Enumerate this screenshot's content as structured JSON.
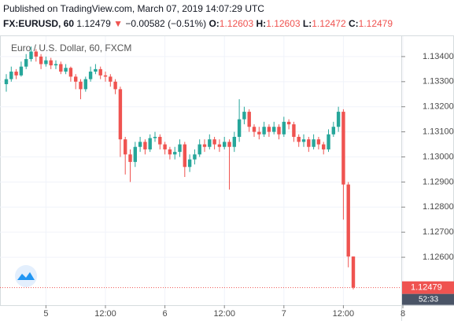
{
  "header": {
    "published": "Published on TradingView.com, March 07, 2019 14:07:29 UTC",
    "symbol": "FX:EURUSD, 60",
    "last": "1.12479",
    "direction": "▼",
    "change": "−0.00582 (−0.51%)",
    "o_label": "O:",
    "o": "1.12603",
    "h_label": "H:",
    "h": "1.12603",
    "l_label": "L:",
    "l": "1.12472",
    "c_label": "C:",
    "c": "1.12479"
  },
  "chart_data": {
    "type": "candlestick",
    "title": "Euro / U.S. Dollar, 60, FXCM",
    "up_color": "#26a69a",
    "down_color": "#ef5350",
    "grid": true,
    "countdown": "52:33",
    "open": [
      1.1329,
      1.1331,
      1.1334,
      1.13325,
      1.1336,
      1.1339,
      1.1342,
      1.134,
      1.1337,
      1.13385,
      1.13365,
      1.1337,
      1.1334,
      1.13355,
      1.1332,
      1.133,
      1.1327,
      1.1331,
      1.1334,
      1.1335,
      1.13325,
      1.1332,
      1.133,
      1.1327,
      1.1307,
      1.1301,
      1.1298,
      1.1304,
      1.1306,
      1.1303,
      1.13075,
      1.1308,
      1.1305,
      1.1303,
      1.1301,
      1.1302,
      1.1305,
      1.1296,
      1.1299,
      1.1301,
      1.1305,
      1.1304,
      1.1307,
      1.1305,
      1.1304,
      1.1306,
      1.1304,
      1.1308,
      1.1315,
      1.1318,
      1.1312,
      1.131,
      1.1309,
      1.1312,
      1.131,
      1.1312,
      1.1309,
      1.1314,
      1.1313,
      1.1308,
      1.1306,
      1.1307,
      1.1304,
      1.1307,
      1.1305,
      1.1303,
      1.1309,
      1.1312,
      1.1318,
      1.1289,
      1.12603
    ],
    "high": [
      1.1333,
      1.1336,
      1.1335,
      1.1338,
      1.1341,
      1.1344,
      1.1343,
      1.1341,
      1.134,
      1.13395,
      1.13385,
      1.1338,
      1.1337,
      1.1336,
      1.1333,
      1.1331,
      1.1332,
      1.1336,
      1.1337,
      1.1336,
      1.1334,
      1.1333,
      1.1331,
      1.1328,
      1.1308,
      1.1303,
      1.1306,
      1.1308,
      1.1307,
      1.1309,
      1.131,
      1.1309,
      1.1306,
      1.1304,
      1.1304,
      1.1307,
      1.1306,
      1.1301,
      1.1303,
      1.1307,
      1.1307,
      1.1309,
      1.1308,
      1.1307,
      1.1308,
      1.1307,
      1.131,
      1.1323,
      1.132,
      1.1319,
      1.1313,
      1.1312,
      1.1314,
      1.1313,
      1.1314,
      1.1313,
      1.1316,
      1.1315,
      1.1314,
      1.1309,
      1.1309,
      1.1308,
      1.1309,
      1.1308,
      1.1306,
      1.1311,
      1.1314,
      1.132,
      1.1319,
      1.129,
      1.12603
    ],
    "low": [
      1.1326,
      1.133,
      1.1331,
      1.1332,
      1.1335,
      1.1338,
      1.1338,
      1.1335,
      1.1336,
      1.1335,
      1.1335,
      1.1333,
      1.1333,
      1.133,
      1.1327,
      1.1323,
      1.1326,
      1.133,
      1.1333,
      1.1331,
      1.133,
      1.1328,
      1.1325,
      1.13,
      1.1293,
      1.129,
      1.1296,
      1.1302,
      1.1301,
      1.1302,
      1.1306,
      1.1303,
      1.1301,
      1.1299,
      1.1299,
      1.13,
      1.1292,
      1.1294,
      1.1297,
      1.13,
      1.1302,
      1.1303,
      1.1303,
      1.1302,
      1.1303,
      1.1287,
      1.1302,
      1.1306,
      1.1313,
      1.131,
      1.1308,
      1.1307,
      1.1308,
      1.1308,
      1.1309,
      1.1307,
      1.1308,
      1.1311,
      1.1306,
      1.1304,
      1.1304,
      1.1302,
      1.1303,
      1.1303,
      1.1301,
      1.1302,
      1.1308,
      1.131,
      1.1275,
      1.1256,
      1.12472
    ],
    "close": [
      1.1331,
      1.1334,
      1.13325,
      1.1336,
      1.1339,
      1.1342,
      1.134,
      1.1337,
      1.13385,
      1.13365,
      1.1337,
      1.1334,
      1.13355,
      1.1332,
      1.133,
      1.1327,
      1.1331,
      1.1334,
      1.1335,
      1.13325,
      1.1332,
      1.133,
      1.1327,
      1.1307,
      1.1301,
      1.1298,
      1.1304,
      1.1306,
      1.1303,
      1.13075,
      1.1308,
      1.1305,
      1.1303,
      1.1301,
      1.1302,
      1.1305,
      1.1296,
      1.1299,
      1.1301,
      1.1305,
      1.1304,
      1.1307,
      1.1305,
      1.1304,
      1.1306,
      1.1304,
      1.1308,
      1.1315,
      1.1318,
      1.1312,
      1.131,
      1.1309,
      1.1312,
      1.131,
      1.1312,
      1.1309,
      1.1314,
      1.1313,
      1.1308,
      1.1306,
      1.1307,
      1.1304,
      1.1307,
      1.1305,
      1.1303,
      1.1309,
      1.1312,
      1.1318,
      1.1289,
      1.12603,
      1.12479
    ],
    "xlim": [
      -1.27,
      79.68
    ],
    "xticks": [
      {
        "value": 8,
        "label": "5"
      },
      {
        "value": 20,
        "label": "12:00"
      },
      {
        "value": 32,
        "label": "6"
      },
      {
        "value": 44,
        "label": "12:00"
      },
      {
        "value": 56,
        "label": "7"
      },
      {
        "value": 68,
        "label": "12:00"
      },
      {
        "value": 80,
        "label": "8"
      }
    ],
    "ylim": [
      1.12409,
      1.13475
    ],
    "yticks": [
      {
        "value": 1.134,
        "label": "1.13400"
      },
      {
        "value": 1.133,
        "label": "1.13300"
      },
      {
        "value": 1.132,
        "label": "1.13200"
      },
      {
        "value": 1.131,
        "label": "1.13100"
      },
      {
        "value": 1.13,
        "label": "1.13000"
      },
      {
        "value": 1.129,
        "label": "1.12900"
      },
      {
        "value": 1.128,
        "label": "1.12800"
      },
      {
        "value": 1.127,
        "label": "1.12700"
      },
      {
        "value": 1.126,
        "label": "1.12600"
      }
    ]
  }
}
